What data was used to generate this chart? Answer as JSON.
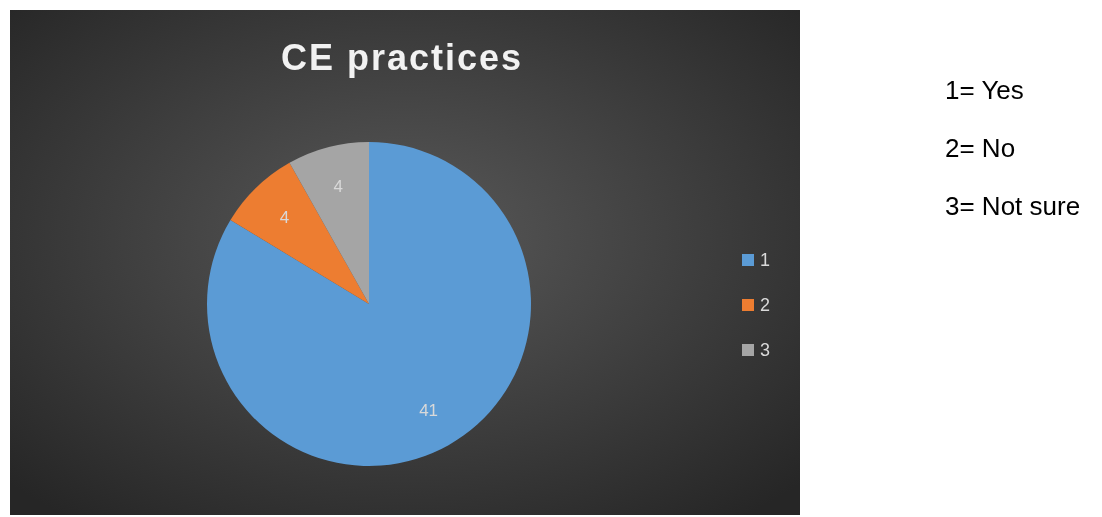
{
  "chart_data": {
    "type": "pie",
    "title": "CE practices",
    "categories": [
      "1",
      "2",
      "3"
    ],
    "values": [
      41,
      4,
      4
    ],
    "colors": [
      "#5b9bd5",
      "#ed7d31",
      "#a5a5a5"
    ],
    "data_labels": true,
    "legend": "right",
    "annotations": [
      "1= Yes",
      "2= No",
      "3= Not sure"
    ]
  }
}
